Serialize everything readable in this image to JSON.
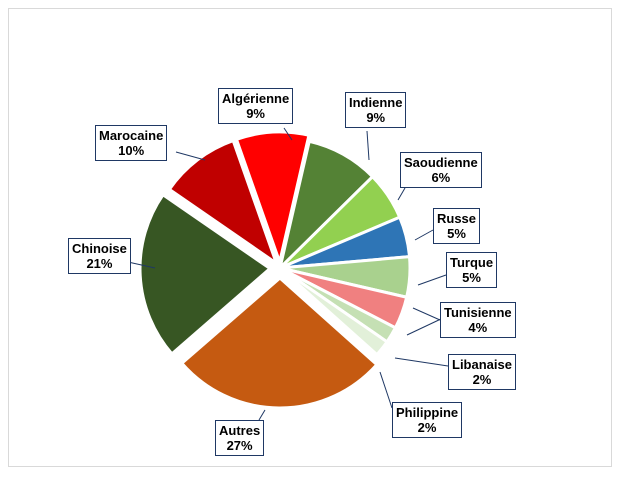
{
  "chart_data": {
    "type": "pie",
    "title": "",
    "slices": [
      {
        "label": "Indienne",
        "pct": "9%",
        "value": 9,
        "color": "#548235"
      },
      {
        "label": "Saoudienne",
        "pct": "6%",
        "value": 6,
        "color": "#92d050"
      },
      {
        "label": "Russe",
        "pct": "5%",
        "value": 5,
        "color": "#2e75b6"
      },
      {
        "label": "Turque",
        "pct": "5%",
        "value": 5,
        "color": "#a9d18e"
      },
      {
        "label": "Tunisienne",
        "pct": "4%",
        "value": 4,
        "color": "#f08080"
      },
      {
        "label": "Libanaise",
        "pct": "2%",
        "value": 2,
        "color": "#c5e0b4"
      },
      {
        "label": "Philippine",
        "pct": "2%",
        "value": 2,
        "color": "#e2f0d9"
      },
      {
        "label": "Autres",
        "pct": "27%",
        "value": 27,
        "color": "#c55a11"
      },
      {
        "label": "Chinoise",
        "pct": "21%",
        "value": 21,
        "color": "#375623"
      },
      {
        "label": "Marocaine",
        "pct": "10%",
        "value": 10,
        "color": "#c00000"
      },
      {
        "label": "Algérienne",
        "pct": "9%",
        "value": 9,
        "color": "#ff0000"
      }
    ],
    "start_angle_deg": 13,
    "direction": "clockwise",
    "legend": "none",
    "data_labels": "callouts"
  }
}
